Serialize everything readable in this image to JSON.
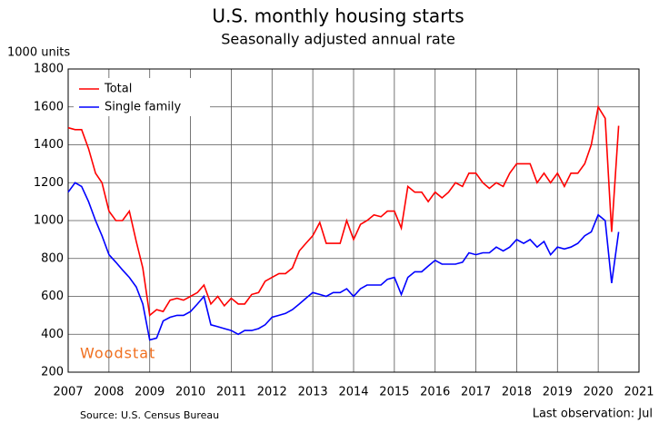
{
  "chart_data": {
    "type": "line",
    "title": "U.S. monthly housing starts",
    "subtitle": "Seasonally adjusted annual rate",
    "y_label": "1000 units",
    "source": "Source: U.S. Census Bureau",
    "note": "Last observation: Jul",
    "brand": "Woodstat",
    "legend": "upper left",
    "grid": true,
    "x": [
      2007,
      2007.17,
      2007.33,
      2007.5,
      2007.67,
      2007.83,
      2008,
      2008.17,
      2008.33,
      2008.5,
      2008.67,
      2008.83,
      2009,
      2009.17,
      2009.33,
      2009.5,
      2009.67,
      2009.83,
      2010,
      2010.17,
      2010.33,
      2010.5,
      2010.67,
      2010.83,
      2011,
      2011.17,
      2011.33,
      2011.5,
      2011.67,
      2011.83,
      2012,
      2012.17,
      2012.33,
      2012.5,
      2012.67,
      2012.83,
      2013,
      2013.17,
      2013.33,
      2013.5,
      2013.67,
      2013.83,
      2014,
      2014.17,
      2014.33,
      2014.5,
      2014.67,
      2014.83,
      2015,
      2015.17,
      2015.33,
      2015.5,
      2015.67,
      2015.83,
      2016,
      2016.17,
      2016.33,
      2016.5,
      2016.67,
      2016.83,
      2017,
      2017.17,
      2017.33,
      2017.5,
      2017.67,
      2017.83,
      2018,
      2018.17,
      2018.33,
      2018.5,
      2018.67,
      2018.83,
      2019,
      2019.17,
      2019.33,
      2019.5,
      2019.67,
      2019.83,
      2020,
      2020.17,
      2020.33,
      2020.5
    ],
    "series": [
      {
        "name": "Total",
        "color": "#ff0000",
        "values": [
          1490,
          1480,
          1480,
          1380,
          1250,
          1200,
          1050,
          1000,
          1000,
          1050,
          890,
          750,
          500,
          530,
          520,
          580,
          590,
          580,
          600,
          620,
          660,
          560,
          600,
          550,
          590,
          560,
          560,
          610,
          620,
          680,
          700,
          720,
          720,
          750,
          840,
          880,
          920,
          990,
          880,
          880,
          880,
          1000,
          900,
          980,
          1000,
          1030,
          1020,
          1050,
          1050,
          960,
          1180,
          1150,
          1150,
          1100,
          1150,
          1120,
          1150,
          1200,
          1180,
          1250,
          1250,
          1200,
          1170,
          1200,
          1180,
          1250,
          1300,
          1300,
          1300,
          1200,
          1250,
          1200,
          1250,
          1180,
          1250,
          1250,
          1300,
          1400,
          1600,
          1540,
          940,
          1500
        ]
      },
      {
        "name": "Single family",
        "color": "#0000ff",
        "values": [
          1150,
          1200,
          1180,
          1100,
          1000,
          920,
          820,
          780,
          740,
          700,
          650,
          560,
          370,
          380,
          470,
          490,
          500,
          500,
          520,
          560,
          600,
          450,
          440,
          430,
          420,
          400,
          420,
          420,
          430,
          450,
          490,
          500,
          510,
          530,
          560,
          590,
          620,
          610,
          600,
          620,
          620,
          640,
          600,
          640,
          660,
          660,
          660,
          690,
          700,
          610,
          700,
          730,
          730,
          760,
          790,
          770,
          770,
          770,
          780,
          830,
          820,
          830,
          830,
          860,
          840,
          860,
          900,
          880,
          900,
          860,
          890,
          820,
          860,
          850,
          860,
          880,
          920,
          940,
          1030,
          1000,
          670,
          940
        ]
      }
    ],
    "xlim": [
      2007,
      2021
    ],
    "xticks": [
      2007,
      2008,
      2009,
      2010,
      2011,
      2012,
      2013,
      2014,
      2015,
      2016,
      2017,
      2018,
      2019,
      2020,
      2021
    ],
    "ylim": [
      200,
      1800
    ],
    "yticks": [
      200,
      400,
      600,
      800,
      1000,
      1200,
      1400,
      1600,
      1800
    ]
  }
}
